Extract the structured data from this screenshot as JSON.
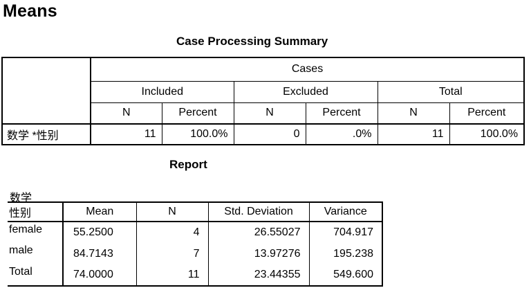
{
  "page": {
    "title": "Means"
  },
  "case_processing_summary": {
    "title": "Case Processing Summary",
    "cases_header": "Cases",
    "groups": [
      "Included",
      "Excluded",
      "Total"
    ],
    "subheaders": [
      "N",
      "Percent",
      "N",
      "Percent",
      "N",
      "Percent"
    ],
    "row": {
      "label": "数学 *性别",
      "values": [
        "11",
        "100.0%",
        "0",
        ".0%",
        "11",
        "100.0%"
      ]
    }
  },
  "report": {
    "title": "Report",
    "variable_label": "数学",
    "columns": [
      "性别",
      "Mean",
      "N",
      "Std. Deviation",
      "Variance"
    ],
    "rows": [
      {
        "label": "female",
        "values": [
          "55.2500",
          "4",
          "26.55027",
          "704.917"
        ]
      },
      {
        "label": "male",
        "values": [
          "84.7143",
          "7",
          "13.97276",
          "195.238"
        ]
      },
      {
        "label": "Total",
        "values": [
          "74.0000",
          "11",
          "23.44355",
          "549.600"
        ]
      }
    ]
  }
}
